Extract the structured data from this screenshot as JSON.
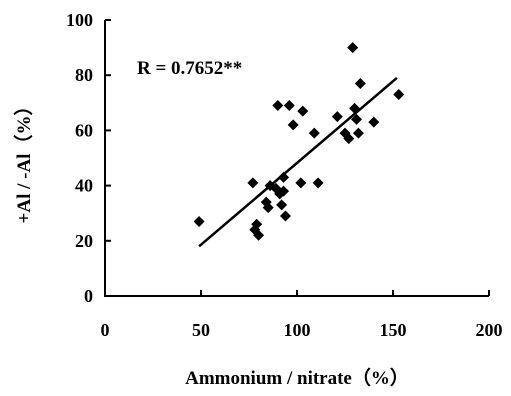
{
  "chart_data": {
    "type": "scatter",
    "title": "",
    "xlabel": "Ammonium / nitrate（%）",
    "ylabel": "+Al / -Al（%）",
    "xlim": [
      0,
      200
    ],
    "ylim": [
      0,
      100
    ],
    "xticks": [
      "0",
      "50",
      "100",
      "150",
      "200"
    ],
    "yticks": [
      "0",
      "20",
      "40",
      "60",
      "80",
      "100"
    ],
    "grid": false,
    "legend": "none",
    "annotation": "R = 0.7652**",
    "marker": "diamond",
    "marker_color": "#000000",
    "points": [
      {
        "x": 49,
        "y": 27
      },
      {
        "x": 77,
        "y": 41
      },
      {
        "x": 78,
        "y": 24
      },
      {
        "x": 79,
        "y": 26
      },
      {
        "x": 80,
        "y": 22
      },
      {
        "x": 84,
        "y": 34
      },
      {
        "x": 85,
        "y": 32
      },
      {
        "x": 86,
        "y": 40
      },
      {
        "x": 89,
        "y": 39
      },
      {
        "x": 90,
        "y": 69
      },
      {
        "x": 91,
        "y": 37
      },
      {
        "x": 92,
        "y": 33
      },
      {
        "x": 93,
        "y": 43
      },
      {
        "x": 93,
        "y": 38
      },
      {
        "x": 94,
        "y": 29
      },
      {
        "x": 96,
        "y": 69
      },
      {
        "x": 98,
        "y": 62
      },
      {
        "x": 102,
        "y": 41
      },
      {
        "x": 103,
        "y": 67
      },
      {
        "x": 109,
        "y": 59
      },
      {
        "x": 111,
        "y": 41
      },
      {
        "x": 121,
        "y": 65
      },
      {
        "x": 125,
        "y": 59
      },
      {
        "x": 127,
        "y": 57
      },
      {
        "x": 129,
        "y": 90
      },
      {
        "x": 130,
        "y": 68
      },
      {
        "x": 131,
        "y": 64
      },
      {
        "x": 132,
        "y": 59
      },
      {
        "x": 133,
        "y": 77
      },
      {
        "x": 140,
        "y": 63
      },
      {
        "x": 153,
        "y": 73
      }
    ],
    "trendline": {
      "x": [
        49,
        152
      ],
      "y": [
        18,
        79
      ]
    }
  }
}
